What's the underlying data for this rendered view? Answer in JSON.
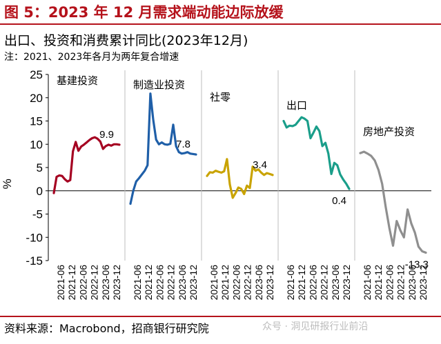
{
  "figure_title": "图 5：2023 年 12 月需求端动能边际放缓",
  "source": "资料来源：Macrobond，招商银行研究院",
  "watermark": "众号 · 洞见研报行业前沿",
  "colors": {
    "title_red": "#b5121b"
  },
  "chart_data": {
    "type": "line",
    "title": "出口、投资和消费累计同比(2023年12月)",
    "note": "注：2021、2023年各月为两年复合增速",
    "ylabel": "%",
    "ylim": [
      -15,
      25
    ],
    "yticks": [
      25,
      20,
      15,
      10,
      5,
      0,
      -5,
      -10,
      -15
    ],
    "xticks": [
      "2021-06",
      "2021-12",
      "2022-06",
      "2022-12",
      "2023-06",
      "2023-12"
    ],
    "grid": false,
    "panels": [
      {
        "name": "基建投资",
        "color": "#a50021",
        "end_label": "9.9",
        "values": [
          -0.5,
          3,
          3.3,
          3.2,
          2.5,
          2,
          2.3,
          8.5,
          10.5,
          8.6,
          9.5,
          9.9,
          10.4,
          10.9,
          11.3,
          11.5,
          11.2,
          10.6,
          9,
          9.6,
          9.9,
          9.7,
          10,
          10,
          9.9
        ]
      },
      {
        "name": "制造业投资",
        "color": "#1f5fa8",
        "end_label": "7.8",
        "values": [
          -2.8,
          0,
          2,
          2.7,
          3.5,
          4.3,
          5.5,
          20.9,
          15.3,
          11,
          10,
          10.4,
          10,
          9.9,
          10.1,
          14.2,
          9.6,
          8.3,
          8,
          8.1,
          8.3,
          8,
          7.9,
          7.8
        ]
      },
      {
        "name": "社零",
        "color": "#c9a300",
        "end_label": "3.4",
        "values": [
          3.2,
          4,
          3.9,
          4.3,
          4.1,
          3.9,
          4.2,
          6.8,
          1.4,
          -1.5,
          -0.5,
          0.7,
          0.4,
          -0.7,
          1.1,
          0.6,
          5.2,
          4.3,
          4.6,
          3.9,
          3.4,
          3.8,
          3.6,
          3.4
        ]
      },
      {
        "name": "出口",
        "color": "#1a9e8a",
        "end_label": "0.4",
        "values": [
          15,
          13.6,
          14,
          13.9,
          14.2,
          15,
          15.8,
          15.5,
          15,
          11.3,
          12.5,
          13.8,
          12.8,
          9.6,
          10.3,
          8,
          3.6,
          6,
          5.5,
          3.5,
          2.4,
          1.5,
          0.4
        ]
      },
      {
        "name": "房地产投资",
        "color": "#8f8f8f",
        "end_label": "-13.3",
        "values": [
          8.1,
          8.4,
          8,
          7.5,
          6.5,
          4.5,
          1.5,
          -3.5,
          -8,
          -11.8,
          -6.5,
          -8.5,
          -10,
          -4,
          -7,
          -9,
          -12,
          -13,
          -13.3
        ]
      }
    ]
  }
}
